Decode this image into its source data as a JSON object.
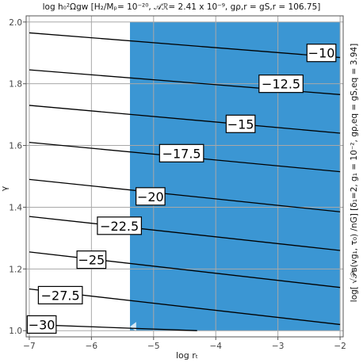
{
  "chart_data": {
    "type": "contour",
    "title": "log h₀²Ωgw [H₂/Mₚ= 10⁻²⁰, 𝒜ℛ= 2.41 x 10⁻⁹, gρ,r = gS,r = 106.75]",
    "xlabel": "log rₜ",
    "ylabel": "γ",
    "right_label": "log[ √𝒫ʙ(vɡ₁, τ₀) /nG]  [δ₁=2, g₁ = 10⁻², gρ,eq = gS,eq = 3.94]",
    "xlim": [
      -7.05,
      -1.95
    ],
    "ylim": [
      0.98,
      2.02
    ],
    "x_ticks": [
      {
        "value": -7,
        "label": "−7"
      },
      {
        "value": -6,
        "label": "−6"
      },
      {
        "value": -5,
        "label": "−5"
      },
      {
        "value": -4,
        "label": "−4"
      },
      {
        "value": -3,
        "label": "−3"
      },
      {
        "value": -2,
        "label": "−2"
      }
    ],
    "y_ticks": [
      {
        "value": 1.0,
        "label": "1.0"
      },
      {
        "value": 1.2,
        "label": "1.2"
      },
      {
        "value": 1.4,
        "label": "1.4"
      },
      {
        "value": 1.6,
        "label": "1.6"
      },
      {
        "value": 1.8,
        "label": "1.8"
      },
      {
        "value": 2.0,
        "label": "2.0"
      }
    ],
    "grid": true,
    "shaded_region": {
      "x_from": -5.38,
      "x_to": -2.0,
      "y_from": 1.0,
      "y_to": 2.0,
      "color": "#3b96d3"
    },
    "contour_lines": [
      {
        "level": "−10",
        "x": [
          -7.0,
          -2.0
        ],
        "y": [
          1.965,
          1.885
        ],
        "label_at": [
          -2.3,
          1.9
        ]
      },
      {
        "level": "−12.5",
        "x": [
          -7.0,
          -2.0
        ],
        "y": [
          1.845,
          1.765
        ],
        "label_at": [
          -2.95,
          1.8
        ]
      },
      {
        "level": "−15",
        "x": [
          -7.0,
          -2.0
        ],
        "y": [
          1.73,
          1.64
        ],
        "label_at": [
          -3.6,
          1.67
        ]
      },
      {
        "level": "−17.5",
        "x": [
          -7.0,
          -2.0
        ],
        "y": [
          1.61,
          1.515
        ],
        "label_at": [
          -4.55,
          1.575
        ]
      },
      {
        "level": "−20",
        "x": [
          -7.0,
          -2.0
        ],
        "y": [
          1.49,
          1.385
        ],
        "label_at": [
          -5.05,
          1.435
        ]
      },
      {
        "level": "−22.5",
        "x": [
          -7.0,
          -2.0
        ],
        "y": [
          1.37,
          1.26
        ],
        "label_at": [
          -5.55,
          1.34
        ]
      },
      {
        "level": "−25",
        "x": [
          -7.0,
          -2.0
        ],
        "y": [
          1.255,
          1.14
        ],
        "label_at": [
          -6.0,
          1.23
        ]
      },
      {
        "level": "−27.5",
        "x": [
          -7.0,
          -2.0
        ],
        "y": [
          1.135,
          1.02
        ],
        "label_at": [
          -6.5,
          1.115
        ]
      },
      {
        "level": "−30",
        "x": [
          -7.0,
          -4.3
        ],
        "y": [
          1.02,
          1.0
        ],
        "label_at": [
          -6.8,
          1.02
        ]
      }
    ],
    "colors": {
      "contour": "#000000",
      "grid": "#a8a8a8",
      "frame": "#555555",
      "fill": "#3b96d3"
    }
  }
}
